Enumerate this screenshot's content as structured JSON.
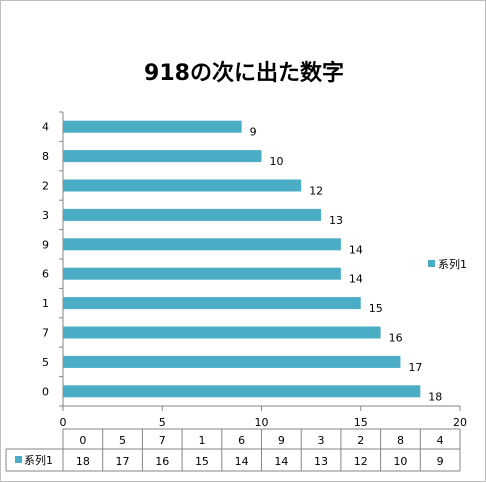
{
  "chart_data": {
    "type": "bar",
    "orientation": "horizontal",
    "title": "918の次に出た数字",
    "categories": [
      "0",
      "5",
      "7",
      "1",
      "6",
      "9",
      "3",
      "2",
      "8",
      "4"
    ],
    "series": [
      {
        "name": "系列1",
        "values": [
          18,
          17,
          16,
          15,
          14,
          14,
          13,
          12,
          10,
          9
        ],
        "color": "#4bacc6"
      }
    ],
    "xlim": [
      0,
      20
    ],
    "x_ticks": [
      "0",
      "5",
      "10",
      "15",
      "20"
    ],
    "data_labels": true,
    "grid": false,
    "legend_position": "right",
    "data_table": true
  }
}
